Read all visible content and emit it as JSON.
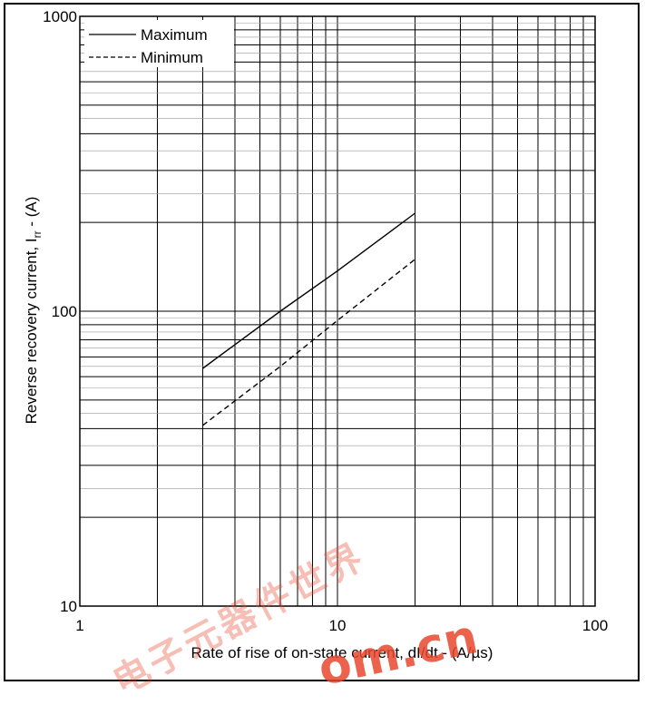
{
  "chart_data": {
    "type": "line",
    "title": "",
    "xlabel": "Rate of rise of on-state current, dI/dt - (A/µs)",
    "ylabel_main": "Reverse recovery current, I",
    "ylabel_sub": "rr",
    "ylabel_tail": " - (A)",
    "xscale": "log",
    "yscale": "log",
    "xlim": [
      1,
      100
    ],
    "ylim": [
      10,
      1000
    ],
    "x_ticks": [
      "1",
      "10",
      "100"
    ],
    "y_ticks": [
      "10",
      "100",
      "1000"
    ],
    "grid": true,
    "legend_position": "top-left",
    "series": [
      {
        "name": "Maximum",
        "style": "solid",
        "x": [
          3,
          6,
          10,
          20
        ],
        "y": [
          64,
          100,
          137,
          215
        ]
      },
      {
        "name": "Minimum",
        "style": "dashed",
        "x": [
          3,
          6,
          10,
          20
        ],
        "y": [
          41,
          65,
          93,
          150
        ]
      }
    ]
  },
  "watermark": {
    "chinese": "电子元器件世界",
    "latin": "om.cn"
  },
  "colors": {
    "line": "#000000",
    "grid_major": "#000000",
    "grid_minor": "#999999",
    "watermark_red": "#e8482f"
  }
}
